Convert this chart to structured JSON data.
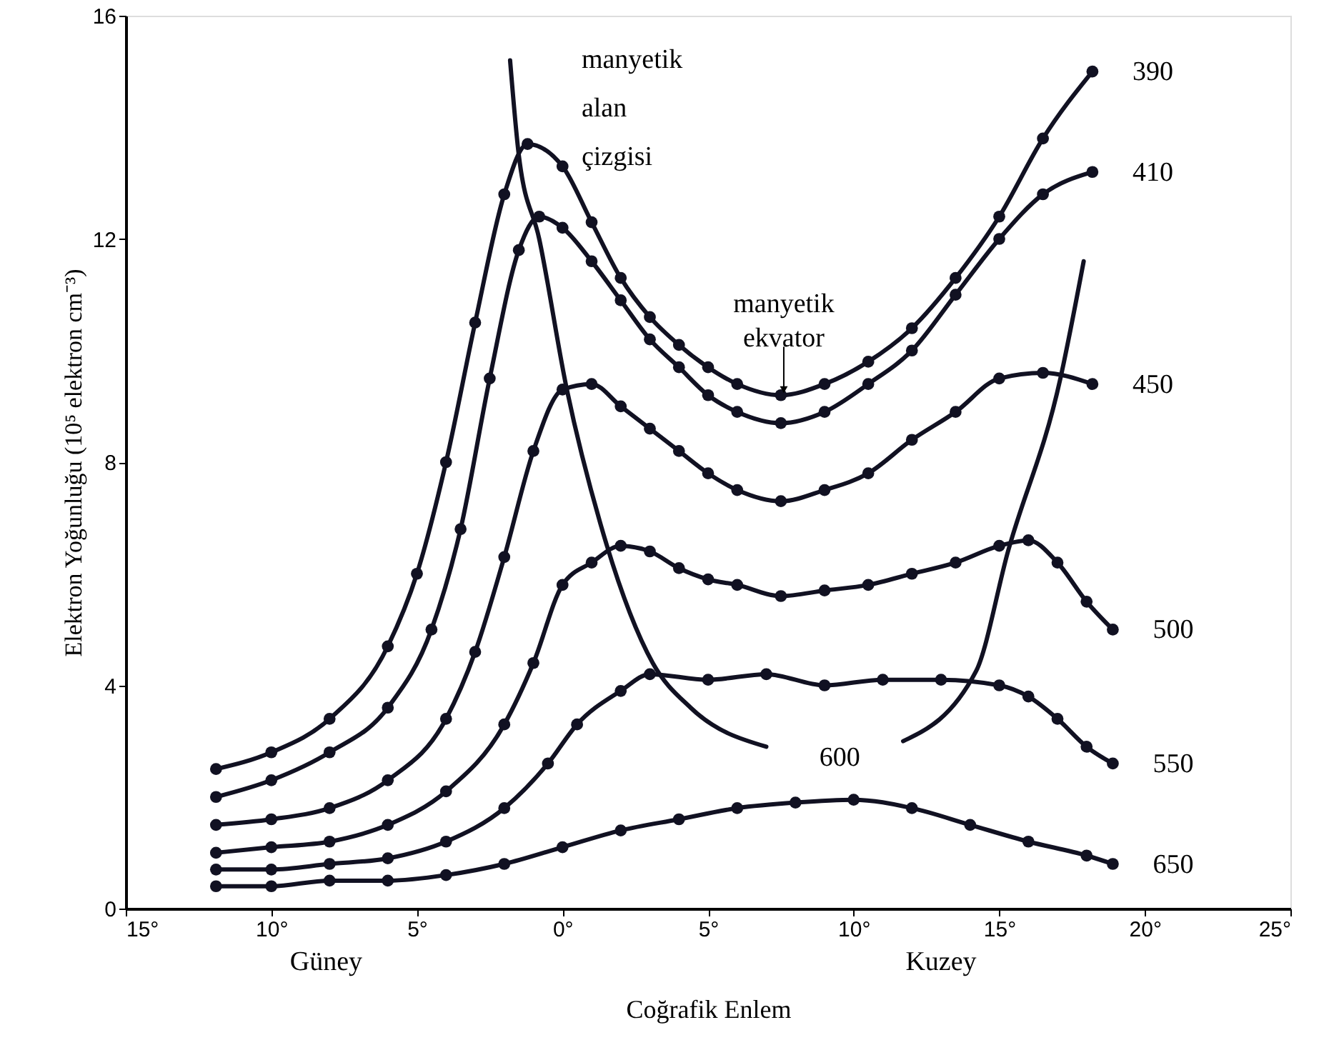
{
  "chart_data": {
    "type": "line",
    "xlabel": "Coğrafik Enlem",
    "ylabel": "Elektron Yoğunluğu (10⁵ elektron cm⁻³)",
    "xlim": [
      -15,
      25
    ],
    "ylim": [
      0,
      16
    ],
    "xticks": [
      {
        "value": -15,
        "label": "15°"
      },
      {
        "value": -10,
        "label": "10°"
      },
      {
        "value": -5,
        "label": "5°"
      },
      {
        "value": 0,
        "label": "0°"
      },
      {
        "value": 5,
        "label": "5°"
      },
      {
        "value": 10,
        "label": "10°"
      },
      {
        "value": 15,
        "label": "15°"
      },
      {
        "value": 20,
        "label": "20°"
      },
      {
        "value": 25,
        "label": "25°"
      }
    ],
    "yticks": [
      0,
      4,
      8,
      12,
      16
    ],
    "grid": false,
    "line_style": "solid",
    "series": [
      {
        "name": "390",
        "color": "#111122",
        "marker": "circle",
        "x": [
          -11.9,
          -10,
          -8,
          -6,
          -5,
          -4,
          -3,
          -2,
          -1.2,
          0,
          1,
          2,
          3,
          4,
          5,
          6,
          7.5,
          9,
          10.5,
          12,
          13.5,
          15,
          16.5,
          18.2
        ],
        "values": [
          2.5,
          2.8,
          3.4,
          4.7,
          6.0,
          8.0,
          10.5,
          12.8,
          13.7,
          13.3,
          12.3,
          11.3,
          10.6,
          10.1,
          9.7,
          9.4,
          9.2,
          9.4,
          9.8,
          10.4,
          11.3,
          12.4,
          13.8,
          15.0
        ]
      },
      {
        "name": "410",
        "color": "#111122",
        "marker": "circle",
        "x": [
          -11.9,
          -10,
          -8,
          -6,
          -4.5,
          -3.5,
          -2.5,
          -1.5,
          -0.8,
          0,
          1,
          2,
          3,
          4,
          5,
          6,
          7.5,
          9,
          10.5,
          12,
          13.5,
          15,
          16.5,
          18.2
        ],
        "values": [
          2.0,
          2.3,
          2.8,
          3.6,
          5.0,
          6.8,
          9.5,
          11.8,
          12.4,
          12.2,
          11.6,
          10.9,
          10.2,
          9.7,
          9.2,
          8.9,
          8.7,
          8.9,
          9.4,
          10.0,
          11.0,
          12.0,
          12.8,
          13.2
        ]
      },
      {
        "name": "450",
        "color": "#111122",
        "marker": "circle",
        "x": [
          -11.9,
          -10,
          -8,
          -6,
          -4,
          -3,
          -2,
          -1,
          0,
          1,
          2,
          3,
          4,
          5,
          6,
          7.5,
          9,
          10.5,
          12,
          13.5,
          15,
          16.5,
          18.2
        ],
        "values": [
          1.5,
          1.6,
          1.8,
          2.3,
          3.4,
          4.6,
          6.3,
          8.2,
          9.3,
          9.4,
          9.0,
          8.6,
          8.2,
          7.8,
          7.5,
          7.3,
          7.5,
          7.8,
          8.4,
          8.9,
          9.5,
          9.6,
          9.4
        ]
      },
      {
        "name": "500",
        "color": "#111122",
        "marker": "circle",
        "x": [
          -11.9,
          -10,
          -8,
          -6,
          -4,
          -2,
          -1,
          0,
          1,
          2,
          3,
          4,
          5,
          6,
          7.5,
          9,
          10.5,
          12,
          13.5,
          15,
          16,
          17,
          18,
          18.9
        ],
        "values": [
          1.0,
          1.1,
          1.2,
          1.5,
          2.1,
          3.3,
          4.4,
          5.8,
          6.2,
          6.5,
          6.4,
          6.1,
          5.9,
          5.8,
          5.6,
          5.7,
          5.8,
          6.0,
          6.2,
          6.5,
          6.6,
          6.2,
          5.5,
          5.0
        ]
      },
      {
        "name": "550",
        "color": "#111122",
        "marker": "circle",
        "x": [
          -11.9,
          -10,
          -8,
          -6,
          -4,
          -2,
          -0.5,
          0.5,
          2,
          3,
          5,
          7,
          9,
          11,
          13,
          15,
          16,
          17,
          18,
          18.9
        ],
        "values": [
          0.7,
          0.7,
          0.8,
          0.9,
          1.2,
          1.8,
          2.6,
          3.3,
          3.9,
          4.2,
          4.1,
          4.2,
          4.0,
          4.1,
          4.1,
          4.0,
          3.8,
          3.4,
          2.9,
          2.6
        ]
      },
      {
        "name": "650",
        "color": "#111122",
        "marker": "circle",
        "x": [
          -11.9,
          -10,
          -8,
          -6,
          -4,
          -2,
          0,
          2,
          4,
          6,
          8,
          10,
          12,
          14,
          16,
          18,
          18.9
        ],
        "values": [
          0.4,
          0.4,
          0.5,
          0.5,
          0.6,
          0.8,
          1.1,
          1.4,
          1.6,
          1.8,
          1.9,
          1.95,
          1.8,
          1.5,
          1.2,
          0.95,
          0.8
        ]
      },
      {
        "color": "#111122",
        "marker": "none",
        "x": [
          -1.8,
          -1.5,
          -0.8,
          0.15,
          1.3,
          3.1,
          4.4,
          7.0
        ],
        "values": [
          15.2,
          13.5,
          12.0,
          9.3,
          6.9,
          4.4,
          3.6,
          2.9
        ]
      },
      {
        "color": "#111122",
        "marker": "none",
        "x": [
          11.7,
          14.2,
          15.3,
          17.1,
          17.9
        ],
        "values": [
          3.0,
          4.25,
          6.4,
          9.5,
          11.6
        ]
      }
    ],
    "annotations": [
      {
        "text": "manyetik\nalan\nçizgisi",
        "x": -1.8,
        "y": 15.2
      },
      {
        "text": "manyetik\nekvator",
        "x": 7.6,
        "y": 9.3
      },
      "600",
      "Güney",
      "Kuzey"
    ]
  }
}
